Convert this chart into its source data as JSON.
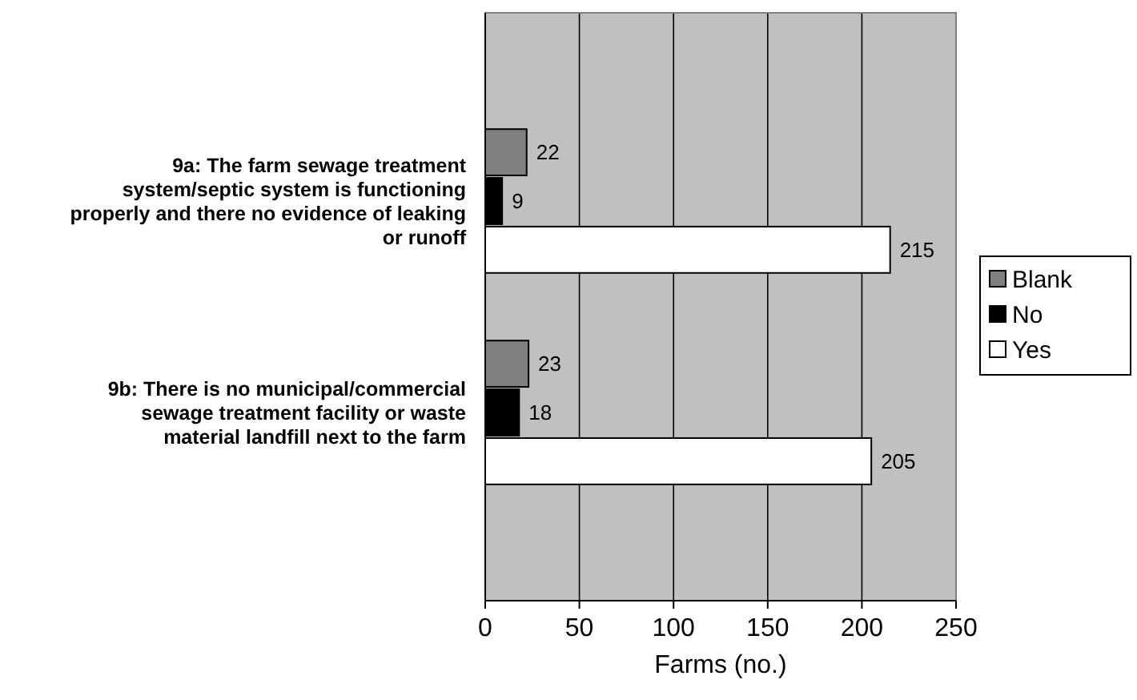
{
  "chart_data": {
    "type": "bar",
    "orientation": "horizontal",
    "xlabel": "Farms (no.)",
    "categories": [
      "9a: The farm sewage treatment system/septic system is functioning properly and there no evidence of leaking or runoff",
      "9b: There is no municipal/commercial sewage treatment facility or waste material landfill next to the farm"
    ],
    "series": [
      {
        "name": "Blank",
        "color": "#808080",
        "values": [
          22,
          23
        ]
      },
      {
        "name": "No",
        "color": "#000000",
        "values": [
          9,
          18
        ]
      },
      {
        "name": "Yes",
        "color": "#ffffff",
        "values": [
          215,
          205
        ]
      }
    ],
    "xlim": [
      0,
      250
    ],
    "xticks": [
      0,
      50,
      100,
      150,
      200,
      250
    ],
    "grid": "x",
    "legend": "right",
    "data_labels": true
  }
}
